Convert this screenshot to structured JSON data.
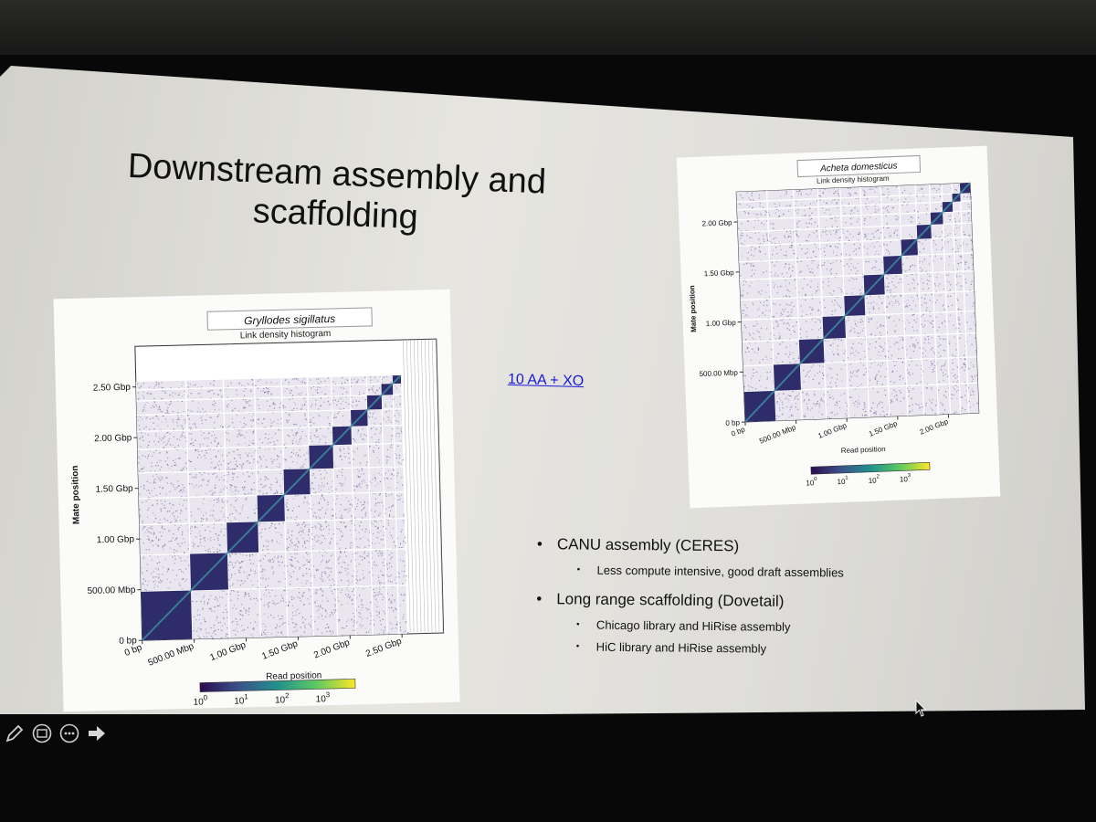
{
  "slide": {
    "title_line1": "Downstream assembly and",
    "title_line2": "scaffolding",
    "link_text": "10 AA +  XO",
    "bullets": [
      {
        "text": "CANU assembly (CERES)",
        "sub": [
          "Less compute intensive, good draft assemblies"
        ]
      },
      {
        "text": "Long range scaffolding (Dovetail)",
        "sub": [
          "Chicago library and HiRise assembly",
          "HiC library and HiRise assembly"
        ]
      }
    ]
  },
  "chart_data": [
    {
      "type": "heatmap",
      "title": "Gryllodes sigillatus",
      "subtitle": "Link density histogram",
      "xlabel": "Read position",
      "ylabel": "Mate position",
      "x_ticks": [
        "0 bp",
        "500.00 Mbp",
        "1.00 Gbp",
        "1.50 Gbp",
        "2.00 Gbp",
        "2.50 Gbp"
      ],
      "y_ticks": [
        "0 bp",
        "500.00 Mbp",
        "1.00 Gbp",
        "1.50 Gbp",
        "2.00 Gbp",
        "2.50 Gbp"
      ],
      "axis_max_gbp": 2.9,
      "data_max_gbp": 2.55,
      "diagonal_blocks_gbp": [
        [
          0.0,
          0.48
        ],
        [
          0.48,
          0.84
        ],
        [
          0.84,
          1.14
        ],
        [
          1.14,
          1.4
        ],
        [
          1.4,
          1.65
        ],
        [
          1.65,
          1.88
        ],
        [
          1.88,
          2.06
        ],
        [
          2.06,
          2.22
        ],
        [
          2.22,
          2.36
        ],
        [
          2.36,
          2.47
        ],
        [
          2.47,
          2.55
        ]
      ],
      "colorbar": {
        "ticks": [
          "10",
          "10",
          "10",
          "10"
        ],
        "exponents": [
          "0",
          "1",
          "2",
          "3"
        ],
        "colors": [
          "#2b0d4f",
          "#3b528b",
          "#21918c",
          "#5ec962",
          "#fde725"
        ]
      }
    },
    {
      "type": "heatmap",
      "title": "Acheta domesticus",
      "subtitle": "Link density histogram",
      "xlabel": "Read position",
      "ylabel": "Mate position",
      "x_ticks": [
        "0 bp",
        "500.00 Mbp",
        "1.00 Gbp",
        "1.50 Gbp",
        "2.00 Gbp"
      ],
      "y_ticks": [
        "0 bp",
        "500.00 Mbp",
        "1.00 Gbp",
        "1.50 Gbp",
        "2.00 Gbp"
      ],
      "axis_max_gbp": 2.3,
      "data_max_gbp": 2.3,
      "diagonal_blocks_gbp": [
        [
          0.0,
          0.3
        ],
        [
          0.3,
          0.56
        ],
        [
          0.56,
          0.8
        ],
        [
          0.8,
          1.02
        ],
        [
          1.02,
          1.22
        ],
        [
          1.22,
          1.42
        ],
        [
          1.42,
          1.6
        ],
        [
          1.6,
          1.76
        ],
        [
          1.76,
          1.9
        ],
        [
          1.9,
          2.02
        ],
        [
          2.02,
          2.12
        ],
        [
          2.12,
          2.2
        ],
        [
          2.2,
          2.3
        ]
      ],
      "colorbar": {
        "ticks": [
          "10",
          "10",
          "10",
          "10"
        ],
        "exponents": [
          "0",
          "1",
          "2",
          "3"
        ],
        "colors": [
          "#2b0d4f",
          "#3b528b",
          "#21918c",
          "#5ec962",
          "#fde725"
        ]
      }
    }
  ],
  "toolbar": {
    "icons": [
      "pen-icon",
      "slides-icon",
      "more-icon",
      "next-arrow-icon"
    ]
  }
}
